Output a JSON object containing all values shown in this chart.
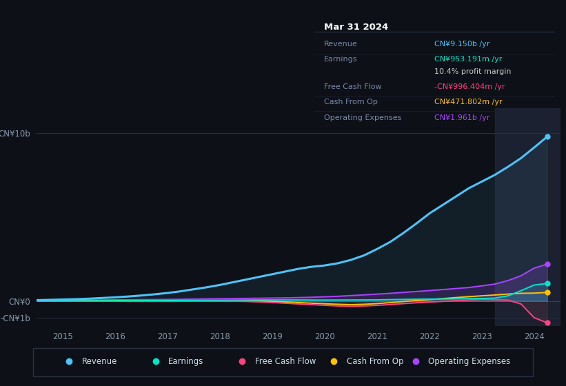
{
  "bg_color": "#0d1117",
  "plot_bg_color": "#0d1117",
  "panel_bg": "#111827",
  "grid_color": "#2a3040",
  "years": [
    2014.5,
    2014.75,
    2015.0,
    2015.25,
    2015.5,
    2015.75,
    2016.0,
    2016.25,
    2016.5,
    2016.75,
    2017.0,
    2017.25,
    2017.5,
    2017.75,
    2018.0,
    2018.25,
    2018.5,
    2018.75,
    2019.0,
    2019.25,
    2019.5,
    2019.75,
    2020.0,
    2020.25,
    2020.5,
    2020.75,
    2021.0,
    2021.25,
    2021.5,
    2021.75,
    2022.0,
    2022.25,
    2022.5,
    2022.75,
    2023.0,
    2023.25,
    2023.5,
    2023.75,
    2024.0,
    2024.25
  ],
  "revenue": [
    0.05,
    0.07,
    0.09,
    0.11,
    0.14,
    0.18,
    0.22,
    0.27,
    0.33,
    0.4,
    0.48,
    0.58,
    0.7,
    0.82,
    0.96,
    1.12,
    1.28,
    1.44,
    1.6,
    1.76,
    1.92,
    2.04,
    2.12,
    2.25,
    2.45,
    2.72,
    3.1,
    3.52,
    4.05,
    4.62,
    5.22,
    5.72,
    6.22,
    6.72,
    7.12,
    7.52,
    8.0,
    8.52,
    9.15,
    9.8
  ],
  "earnings": [
    0.004,
    0.005,
    0.006,
    0.008,
    0.01,
    0.013,
    0.016,
    0.019,
    0.022,
    0.025,
    0.028,
    0.032,
    0.038,
    0.042,
    0.047,
    0.052,
    0.057,
    0.06,
    0.062,
    0.065,
    0.062,
    0.06,
    0.058,
    0.06,
    0.062,
    0.065,
    0.07,
    0.082,
    0.095,
    0.108,
    0.115,
    0.122,
    0.13,
    0.14,
    0.148,
    0.175,
    0.31,
    0.62,
    0.953,
    1.05
  ],
  "free_cash_flow": [
    0.003,
    0.002,
    0.001,
    0.0,
    -0.002,
    -0.006,
    -0.012,
    -0.018,
    -0.022,
    -0.022,
    -0.02,
    -0.016,
    -0.012,
    -0.008,
    -0.005,
    -0.012,
    -0.025,
    -0.055,
    -0.09,
    -0.13,
    -0.175,
    -0.215,
    -0.26,
    -0.295,
    -0.315,
    -0.295,
    -0.26,
    -0.21,
    -0.155,
    -0.105,
    -0.062,
    -0.022,
    0.018,
    0.058,
    0.095,
    0.082,
    0.052,
    -0.18,
    -0.996,
    -1.3
  ],
  "cash_from_op": [
    0.01,
    0.012,
    0.015,
    0.018,
    0.02,
    0.022,
    0.025,
    0.028,
    0.03,
    0.03,
    0.028,
    0.025,
    0.02,
    0.015,
    0.01,
    0.005,
    0.0,
    -0.01,
    -0.025,
    -0.055,
    -0.09,
    -0.13,
    -0.165,
    -0.195,
    -0.22,
    -0.195,
    -0.155,
    -0.095,
    -0.03,
    0.03,
    0.085,
    0.145,
    0.205,
    0.26,
    0.31,
    0.36,
    0.415,
    0.46,
    0.472,
    0.51
  ],
  "op_expenses": [
    0.028,
    0.034,
    0.042,
    0.05,
    0.058,
    0.064,
    0.07,
    0.076,
    0.082,
    0.088,
    0.095,
    0.105,
    0.115,
    0.126,
    0.138,
    0.148,
    0.158,
    0.168,
    0.178,
    0.188,
    0.205,
    0.225,
    0.252,
    0.282,
    0.325,
    0.368,
    0.412,
    0.46,
    0.512,
    0.568,
    0.625,
    0.682,
    0.742,
    0.805,
    0.905,
    1.01,
    1.22,
    1.51,
    1.961,
    2.2
  ],
  "revenue_color": "#4fc3f7",
  "earnings_color": "#00e5cc",
  "fcf_color": "#ff4081",
  "cashop_color": "#ffc107",
  "opex_color": "#aa44ff",
  "highlight_start": 2023.25,
  "highlight_end": 2024.5,
  "tooltip_title": "Mar 31 2024",
  "tooltip_items": [
    {
      "label": "Revenue",
      "value": "CN¥9.150b /yr",
      "color": "#4fc3f7"
    },
    {
      "label": "Earnings",
      "value": "CN¥953.191m /yr",
      "color": "#00e5cc"
    },
    {
      "label": "",
      "value": "10.4% profit margin",
      "color": "#cccccc"
    },
    {
      "label": "Free Cash Flow",
      "value": "-CN¥996.404m /yr",
      "color": "#ff4081"
    },
    {
      "label": "Cash From Op",
      "value": "CN¥471.802m /yr",
      "color": "#ffc107"
    },
    {
      "label": "Operating Expenses",
      "value": "CN¥1.961b /yr",
      "color": "#aa44ff"
    }
  ],
  "ylim": [
    -1.5,
    11.5
  ],
  "xlim": [
    2014.5,
    2024.5
  ],
  "ytick_vals": [
    10.0,
    0.0,
    -1.0
  ],
  "ytick_labels": [
    "CN¥10b",
    "CN¥0",
    "-CN¥1b"
  ],
  "xticks": [
    2015,
    2016,
    2017,
    2018,
    2019,
    2020,
    2021,
    2022,
    2023,
    2024
  ],
  "legend_items": [
    {
      "label": "Revenue",
      "color": "#4fc3f7"
    },
    {
      "label": "Earnings",
      "color": "#00e5cc"
    },
    {
      "label": "Free Cash Flow",
      "color": "#ff4081"
    },
    {
      "label": "Cash From Op",
      "color": "#ffc107"
    },
    {
      "label": "Operating Expenses",
      "color": "#aa44ff"
    }
  ]
}
